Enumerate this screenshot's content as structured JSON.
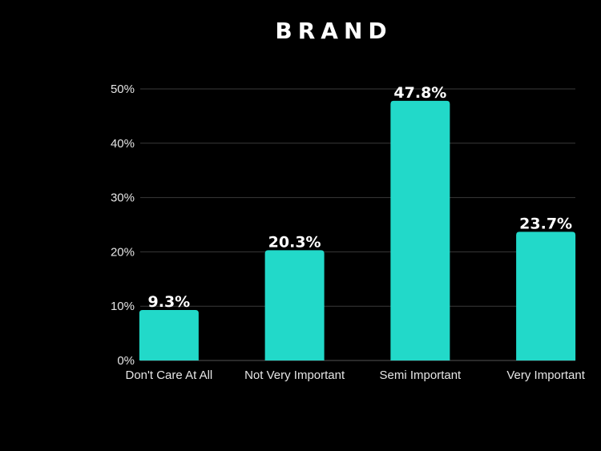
{
  "chart_data": {
    "type": "bar",
    "title": "BRAND",
    "xlabel": "",
    "ylabel": "",
    "categories": [
      "Don't Care At All",
      "Not Very Important",
      "Semi Important",
      "Very Important"
    ],
    "values": [
      9.3,
      20.3,
      47.8,
      23.7
    ],
    "data_labels": [
      "9.3%",
      "20.3%",
      "47.8%",
      "23.7%"
    ],
    "ylim": [
      0,
      50
    ],
    "yticks": [
      0,
      10,
      20,
      30,
      40,
      50
    ],
    "ytick_labels": [
      "0%",
      "10%",
      "20%",
      "30%",
      "40%",
      "50%"
    ],
    "grid": true,
    "legend": "none",
    "bar_color": "#22d9c9",
    "grid_color": "#3a3a3a",
    "background": "#000000"
  }
}
